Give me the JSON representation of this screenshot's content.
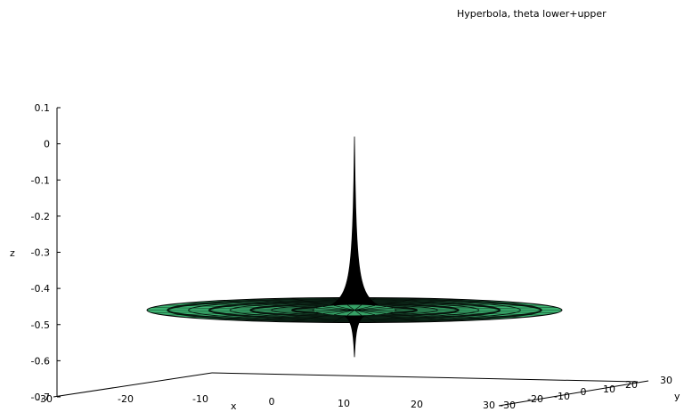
{
  "chart_data": {
    "type": "surface",
    "title": "Hyperbola, theta lower+upper",
    "xlabel": "x",
    "ylabel": "y",
    "zlabel": "z",
    "z_ticks": [
      "0.1",
      "0",
      "-0.1",
      "-0.2",
      "-0.3",
      "-0.4",
      "-0.5",
      "-0.6",
      "-0.7"
    ],
    "x_ticks": [
      "-30",
      "-20",
      "-10",
      "0",
      "10",
      "20",
      "30"
    ],
    "y_ticks": [
      "-30",
      "-20",
      "-10",
      "0",
      "10",
      "20",
      "30"
    ],
    "z_range": [
      -0.7,
      0.1
    ],
    "x_range": [
      -30,
      30
    ],
    "y_range": [
      -30,
      30
    ],
    "surface": {
      "disk_level_z": -0.46,
      "upper_peak_z": 0.02,
      "lower_peak_z": -0.59,
      "disk_radius": 30
    },
    "colors": {
      "surface": "#3cb371",
      "mesh": "#000000"
    }
  }
}
